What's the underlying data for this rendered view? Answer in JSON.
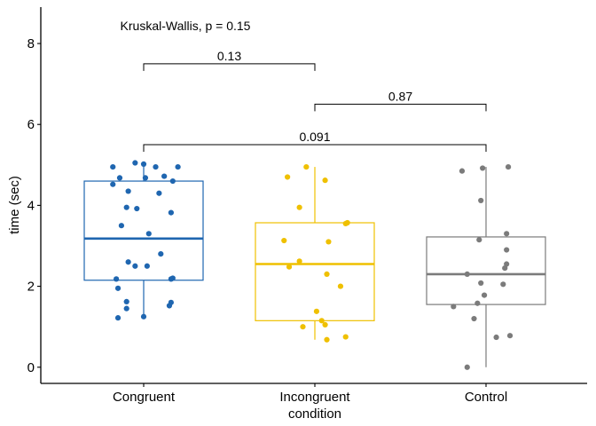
{
  "chart_data": {
    "type": "box",
    "xlabel": "condition",
    "ylabel": "time (sec)",
    "ylim": [
      -0.4,
      8.9
    ],
    "yticks": [
      0,
      2,
      4,
      6,
      8
    ],
    "categories": [
      "Congruent",
      "Incongruent",
      "Control"
    ],
    "grid": false,
    "legend": "none",
    "test_label": "Kruskal-Wallis, p = 0.15",
    "groups": [
      {
        "name": "Congruent",
        "color": "#1F66B0",
        "q1": 2.15,
        "median": 3.18,
        "q3": 4.6,
        "whisker_low": 1.22,
        "whisker_high": 5.05,
        "points": [
          {
            "x": -0.18,
            "y": 4.95
          },
          {
            "x": -0.05,
            "y": 5.05
          },
          {
            "x": 0.0,
            "y": 5.02
          },
          {
            "x": 0.07,
            "y": 4.95
          },
          {
            "x": 0.2,
            "y": 4.95
          },
          {
            "x": -0.14,
            "y": 4.68
          },
          {
            "x": 0.01,
            "y": 4.68
          },
          {
            "x": 0.12,
            "y": 4.72
          },
          {
            "x": 0.17,
            "y": 4.6
          },
          {
            "x": -0.18,
            "y": 4.52
          },
          {
            "x": -0.09,
            "y": 4.35
          },
          {
            "x": 0.09,
            "y": 4.3
          },
          {
            "x": -0.1,
            "y": 3.95
          },
          {
            "x": -0.04,
            "y": 3.92
          },
          {
            "x": 0.16,
            "y": 3.82
          },
          {
            "x": -0.13,
            "y": 3.5
          },
          {
            "x": 0.03,
            "y": 3.3
          },
          {
            "x": 0.1,
            "y": 2.8
          },
          {
            "x": -0.09,
            "y": 2.6
          },
          {
            "x": -0.05,
            "y": 2.5
          },
          {
            "x": 0.02,
            "y": 2.5
          },
          {
            "x": 0.17,
            "y": 2.2
          },
          {
            "x": 0.16,
            "y": 2.18
          },
          {
            "x": -0.16,
            "y": 2.18
          },
          {
            "x": -0.15,
            "y": 1.95
          },
          {
            "x": -0.1,
            "y": 1.62
          },
          {
            "x": 0.16,
            "y": 1.6
          },
          {
            "x": 0.15,
            "y": 1.52
          },
          {
            "x": -0.1,
            "y": 1.45
          },
          {
            "x": 0.0,
            "y": 1.25
          },
          {
            "x": -0.15,
            "y": 1.22
          }
        ]
      },
      {
        "name": "Incongruent",
        "color": "#EFC000",
        "q1": 1.15,
        "median": 2.55,
        "q3": 3.57,
        "whisker_low": 0.68,
        "whisker_high": 4.95,
        "points": [
          {
            "x": -0.05,
            "y": 4.95
          },
          {
            "x": -0.16,
            "y": 4.7
          },
          {
            "x": 0.06,
            "y": 4.62
          },
          {
            "x": -0.09,
            "y": 3.95
          },
          {
            "x": 0.19,
            "y": 3.57
          },
          {
            "x": 0.18,
            "y": 3.55
          },
          {
            "x": -0.18,
            "y": 3.13
          },
          {
            "x": 0.08,
            "y": 3.1
          },
          {
            "x": -0.09,
            "y": 2.62
          },
          {
            "x": -0.15,
            "y": 2.48
          },
          {
            "x": 0.07,
            "y": 2.3
          },
          {
            "x": 0.15,
            "y": 2.0
          },
          {
            "x": 0.01,
            "y": 1.38
          },
          {
            "x": 0.04,
            "y": 1.15
          },
          {
            "x": 0.06,
            "y": 1.05
          },
          {
            "x": -0.07,
            "y": 1.0
          },
          {
            "x": 0.18,
            "y": 0.75
          },
          {
            "x": 0.07,
            "y": 0.68
          }
        ]
      },
      {
        "name": "Control",
        "color": "#7B7B7B",
        "q1": 1.55,
        "median": 2.3,
        "q3": 3.22,
        "whisker_low": 0.0,
        "whisker_high": 4.95,
        "points": [
          {
            "x": 0.13,
            "y": 4.95
          },
          {
            "x": -0.02,
            "y": 4.92
          },
          {
            "x": -0.14,
            "y": 4.85
          },
          {
            "x": -0.03,
            "y": 4.12
          },
          {
            "x": 0.12,
            "y": 3.3
          },
          {
            "x": -0.04,
            "y": 3.15
          },
          {
            "x": 0.12,
            "y": 2.9
          },
          {
            "x": 0.12,
            "y": 2.55
          },
          {
            "x": 0.11,
            "y": 2.45
          },
          {
            "x": -0.11,
            "y": 2.3
          },
          {
            "x": -0.03,
            "y": 2.08
          },
          {
            "x": 0.1,
            "y": 2.05
          },
          {
            "x": -0.01,
            "y": 1.78
          },
          {
            "x": -0.19,
            "y": 1.5
          },
          {
            "x": -0.05,
            "y": 1.58
          },
          {
            "x": -0.07,
            "y": 1.2
          },
          {
            "x": 0.14,
            "y": 0.78
          },
          {
            "x": 0.06,
            "y": 0.74
          },
          {
            "x": -0.11,
            "y": 0.0
          }
        ]
      }
    ],
    "comparisons": [
      {
        "from": 0,
        "to": 1,
        "y": 7.5,
        "label": "0.13"
      },
      {
        "from": 1,
        "to": 2,
        "y": 6.5,
        "label": "0.87"
      },
      {
        "from": 0,
        "to": 2,
        "y": 5.5,
        "label": "0.091"
      }
    ]
  }
}
